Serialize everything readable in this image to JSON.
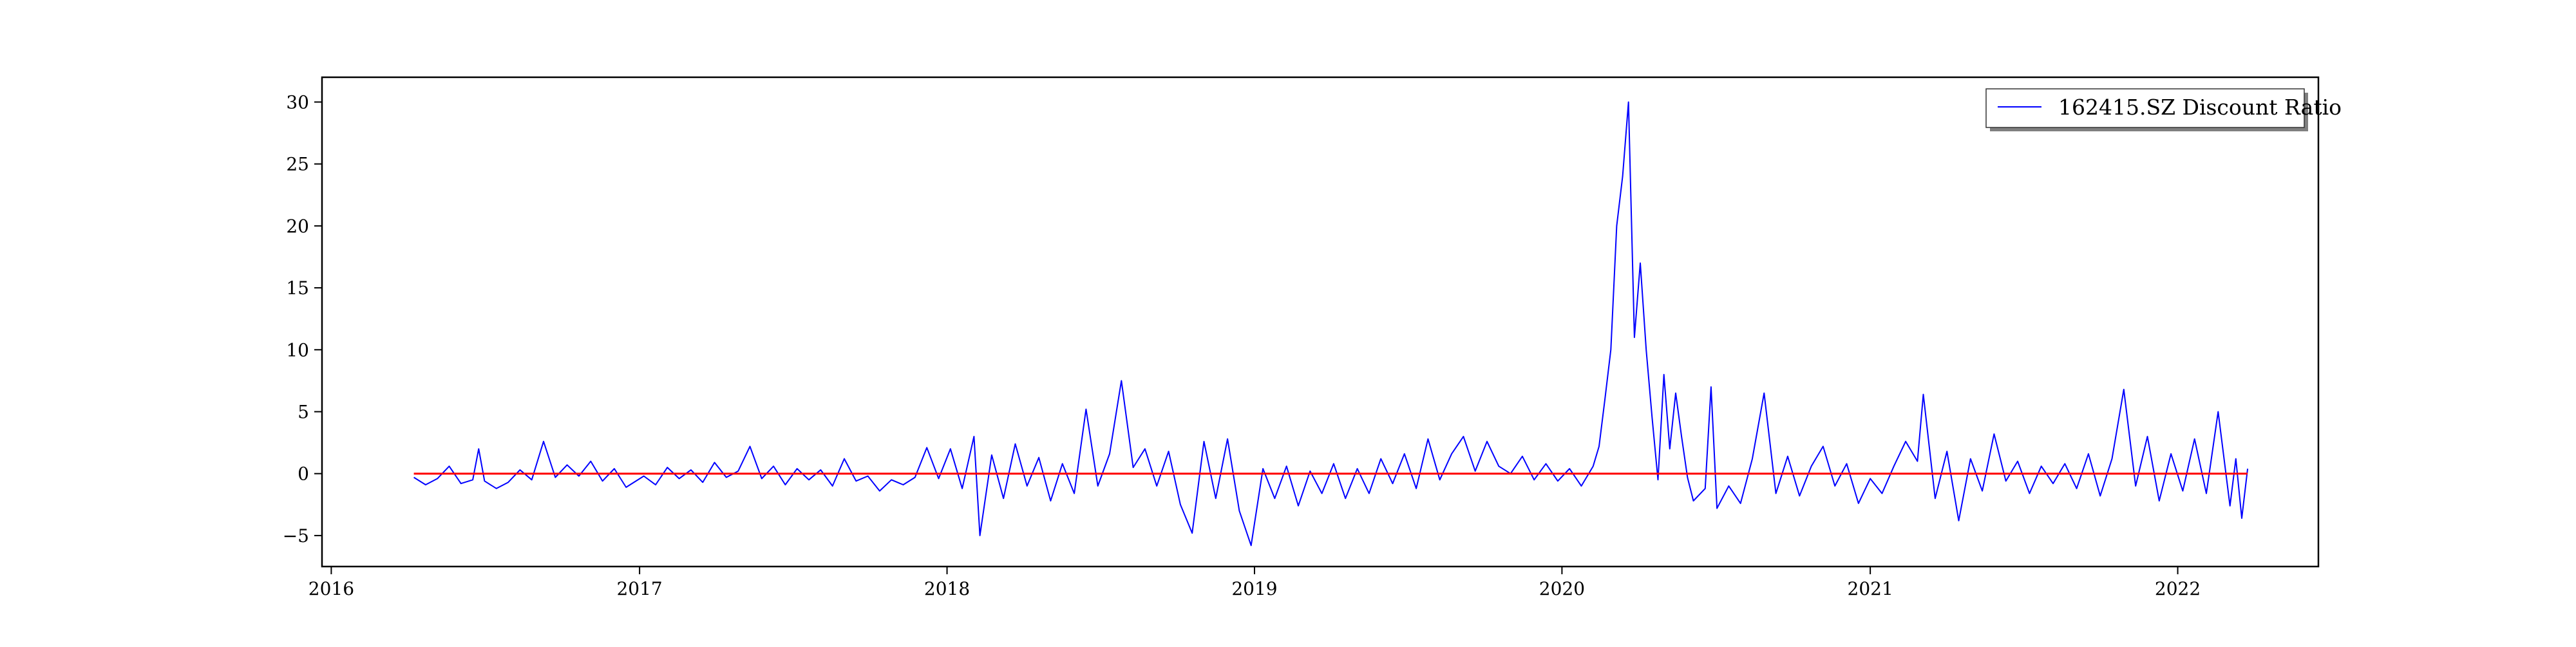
{
  "chart_data": {
    "type": "line",
    "title": "",
    "xlabel": "",
    "ylabel": "",
    "x_axis": {
      "type": "date",
      "range": [
        "2015-12-21",
        "2022-06-17"
      ],
      "ticks": [
        "2016-01-01",
        "2017-01-01",
        "2018-01-01",
        "2019-01-01",
        "2020-01-01",
        "2021-01-01",
        "2022-01-01"
      ],
      "tick_labels": [
        "2016",
        "2017",
        "2018",
        "2019",
        "2020",
        "2021",
        "2022"
      ]
    },
    "y_axis": {
      "range": [
        -7.5,
        32
      ],
      "ticks": [
        -5,
        0,
        5,
        10,
        15,
        20,
        25,
        30
      ],
      "tick_labels": [
        "−5",
        "0",
        "5",
        "10",
        "15",
        "20",
        "25",
        "30"
      ]
    },
    "grid": false,
    "legend": {
      "placement": "top-right",
      "entries": [
        "162415.SZ Discount Ratio"
      ]
    },
    "series": [
      {
        "name": "162415.SZ Discount Ratio",
        "color": "#0000ff",
        "points": [
          [
            "2016-04-08",
            -0.3
          ],
          [
            "2016-04-22",
            -0.9
          ],
          [
            "2016-05-06",
            -0.4
          ],
          [
            "2016-05-20",
            0.6
          ],
          [
            "2016-06-03",
            -0.8
          ],
          [
            "2016-06-17",
            -0.5
          ],
          [
            "2016-06-24",
            2.0
          ],
          [
            "2016-07-01",
            -0.6
          ],
          [
            "2016-07-15",
            -1.2
          ],
          [
            "2016-07-29",
            -0.7
          ],
          [
            "2016-08-12",
            0.3
          ],
          [
            "2016-08-26",
            -0.5
          ],
          [
            "2016-09-09",
            2.6
          ],
          [
            "2016-09-23",
            -0.3
          ],
          [
            "2016-10-07",
            0.7
          ],
          [
            "2016-10-21",
            -0.2
          ],
          [
            "2016-11-04",
            1.0
          ],
          [
            "2016-11-18",
            -0.6
          ],
          [
            "2016-12-02",
            0.4
          ],
          [
            "2016-12-16",
            -1.1
          ],
          [
            "2017-01-06",
            -0.2
          ],
          [
            "2017-01-20",
            -0.9
          ],
          [
            "2017-02-03",
            0.5
          ],
          [
            "2017-02-17",
            -0.4
          ],
          [
            "2017-03-03",
            0.3
          ],
          [
            "2017-03-17",
            -0.7
          ],
          [
            "2017-03-31",
            0.9
          ],
          [
            "2017-04-14",
            -0.3
          ],
          [
            "2017-04-28",
            0.2
          ],
          [
            "2017-05-12",
            2.2
          ],
          [
            "2017-05-26",
            -0.4
          ],
          [
            "2017-06-09",
            0.6
          ],
          [
            "2017-06-23",
            -0.9
          ],
          [
            "2017-07-07",
            0.4
          ],
          [
            "2017-07-21",
            -0.5
          ],
          [
            "2017-08-04",
            0.3
          ],
          [
            "2017-08-18",
            -1.0
          ],
          [
            "2017-09-01",
            1.2
          ],
          [
            "2017-09-15",
            -0.6
          ],
          [
            "2017-09-29",
            -0.2
          ],
          [
            "2017-10-13",
            -1.4
          ],
          [
            "2017-10-27",
            -0.5
          ],
          [
            "2017-11-10",
            -0.9
          ],
          [
            "2017-11-24",
            -0.3
          ],
          [
            "2017-12-08",
            2.1
          ],
          [
            "2017-12-22",
            -0.4
          ],
          [
            "2018-01-05",
            2.0
          ],
          [
            "2018-01-19",
            -1.2
          ],
          [
            "2018-02-02",
            3.0
          ],
          [
            "2018-02-09",
            -5.0
          ],
          [
            "2018-02-23",
            1.5
          ],
          [
            "2018-03-09",
            -2.0
          ],
          [
            "2018-03-23",
            2.4
          ],
          [
            "2018-04-06",
            -1.0
          ],
          [
            "2018-04-20",
            1.3
          ],
          [
            "2018-05-04",
            -2.2
          ],
          [
            "2018-05-18",
            0.8
          ],
          [
            "2018-06-01",
            -1.6
          ],
          [
            "2018-06-15",
            5.2
          ],
          [
            "2018-06-29",
            -1.0
          ],
          [
            "2018-07-13",
            1.6
          ],
          [
            "2018-07-27",
            7.5
          ],
          [
            "2018-08-10",
            0.5
          ],
          [
            "2018-08-24",
            2.0
          ],
          [
            "2018-09-07",
            -1.0
          ],
          [
            "2018-09-21",
            1.8
          ],
          [
            "2018-10-05",
            -2.5
          ],
          [
            "2018-10-19",
            -4.8
          ],
          [
            "2018-11-02",
            2.6
          ],
          [
            "2018-11-16",
            -2.0
          ],
          [
            "2018-11-30",
            2.8
          ],
          [
            "2018-12-14",
            -3.0
          ],
          [
            "2018-12-28",
            -5.8
          ],
          [
            "2019-01-11",
            0.4
          ],
          [
            "2019-01-25",
            -2.0
          ],
          [
            "2019-02-08",
            0.6
          ],
          [
            "2019-02-22",
            -2.6
          ],
          [
            "2019-03-08",
            0.2
          ],
          [
            "2019-03-22",
            -1.6
          ],
          [
            "2019-04-05",
            0.8
          ],
          [
            "2019-04-19",
            -2.0
          ],
          [
            "2019-05-03",
            0.4
          ],
          [
            "2019-05-17",
            -1.6
          ],
          [
            "2019-05-31",
            1.2
          ],
          [
            "2019-06-14",
            -0.8
          ],
          [
            "2019-06-28",
            1.6
          ],
          [
            "2019-07-12",
            -1.2
          ],
          [
            "2019-07-26",
            2.8
          ],
          [
            "2019-08-09",
            -0.5
          ],
          [
            "2019-08-23",
            1.6
          ],
          [
            "2019-09-06",
            3.0
          ],
          [
            "2019-09-20",
            0.2
          ],
          [
            "2019-10-04",
            2.6
          ],
          [
            "2019-10-18",
            0.6
          ],
          [
            "2019-11-01",
            0.0
          ],
          [
            "2019-11-15",
            1.4
          ],
          [
            "2019-11-29",
            -0.5
          ],
          [
            "2019-12-13",
            0.8
          ],
          [
            "2019-12-27",
            -0.6
          ],
          [
            "2020-01-10",
            0.4
          ],
          [
            "2020-01-24",
            -1.0
          ],
          [
            "2020-02-07",
            0.6
          ],
          [
            "2020-02-14",
            2.2
          ],
          [
            "2020-02-21",
            6.0
          ],
          [
            "2020-02-28",
            10.0
          ],
          [
            "2020-03-06",
            20.0
          ],
          [
            "2020-03-13",
            24.0
          ],
          [
            "2020-03-20",
            30.0
          ],
          [
            "2020-03-27",
            11.0
          ],
          [
            "2020-04-03",
            17.0
          ],
          [
            "2020-04-10",
            10.0
          ],
          [
            "2020-04-17",
            4.5
          ],
          [
            "2020-04-24",
            -0.5
          ],
          [
            "2020-05-01",
            8.0
          ],
          [
            "2020-05-08",
            2.0
          ],
          [
            "2020-05-15",
            6.5
          ],
          [
            "2020-05-22",
            3.0
          ],
          [
            "2020-05-29",
            -0.3
          ],
          [
            "2020-06-05",
            -2.2
          ],
          [
            "2020-06-19",
            -1.2
          ],
          [
            "2020-06-26",
            7.0
          ],
          [
            "2020-07-03",
            -2.8
          ],
          [
            "2020-07-17",
            -1.0
          ],
          [
            "2020-07-31",
            -2.4
          ],
          [
            "2020-08-14",
            1.2
          ],
          [
            "2020-08-28",
            6.5
          ],
          [
            "2020-09-11",
            -1.6
          ],
          [
            "2020-09-25",
            1.4
          ],
          [
            "2020-10-09",
            -1.8
          ],
          [
            "2020-10-23",
            0.6
          ],
          [
            "2020-11-06",
            2.2
          ],
          [
            "2020-11-20",
            -1.0
          ],
          [
            "2020-12-04",
            0.8
          ],
          [
            "2020-12-18",
            -2.4
          ],
          [
            "2021-01-01",
            -0.4
          ],
          [
            "2021-01-15",
            -1.6
          ],
          [
            "2021-01-29",
            0.6
          ],
          [
            "2021-02-12",
            2.6
          ],
          [
            "2021-02-26",
            1.0
          ],
          [
            "2021-03-05",
            6.4
          ],
          [
            "2021-03-19",
            -2.0
          ],
          [
            "2021-04-02",
            1.8
          ],
          [
            "2021-04-16",
            -3.8
          ],
          [
            "2021-04-30",
            1.2
          ],
          [
            "2021-05-14",
            -1.4
          ],
          [
            "2021-05-28",
            3.2
          ],
          [
            "2021-06-11",
            -0.6
          ],
          [
            "2021-06-25",
            1.0
          ],
          [
            "2021-07-09",
            -1.6
          ],
          [
            "2021-07-23",
            0.6
          ],
          [
            "2021-08-06",
            -0.8
          ],
          [
            "2021-08-20",
            0.8
          ],
          [
            "2021-09-03",
            -1.2
          ],
          [
            "2021-09-17",
            1.6
          ],
          [
            "2021-10-01",
            -1.8
          ],
          [
            "2021-10-15",
            1.2
          ],
          [
            "2021-10-29",
            6.8
          ],
          [
            "2021-11-12",
            -1.0
          ],
          [
            "2021-11-26",
            3.0
          ],
          [
            "2021-12-10",
            -2.2
          ],
          [
            "2021-12-24",
            1.6
          ],
          [
            "2022-01-07",
            -1.4
          ],
          [
            "2022-01-21",
            2.8
          ],
          [
            "2022-02-04",
            -1.6
          ],
          [
            "2022-02-18",
            5.0
          ],
          [
            "2022-03-04",
            -2.6
          ],
          [
            "2022-03-11",
            1.2
          ],
          [
            "2022-03-18",
            -3.6
          ],
          [
            "2022-03-25",
            0.4
          ]
        ]
      },
      {
        "name": "",
        "color": "#ff0000",
        "points": [
          [
            "2016-04-08",
            0
          ],
          [
            "2022-03-25",
            0
          ]
        ]
      }
    ]
  }
}
